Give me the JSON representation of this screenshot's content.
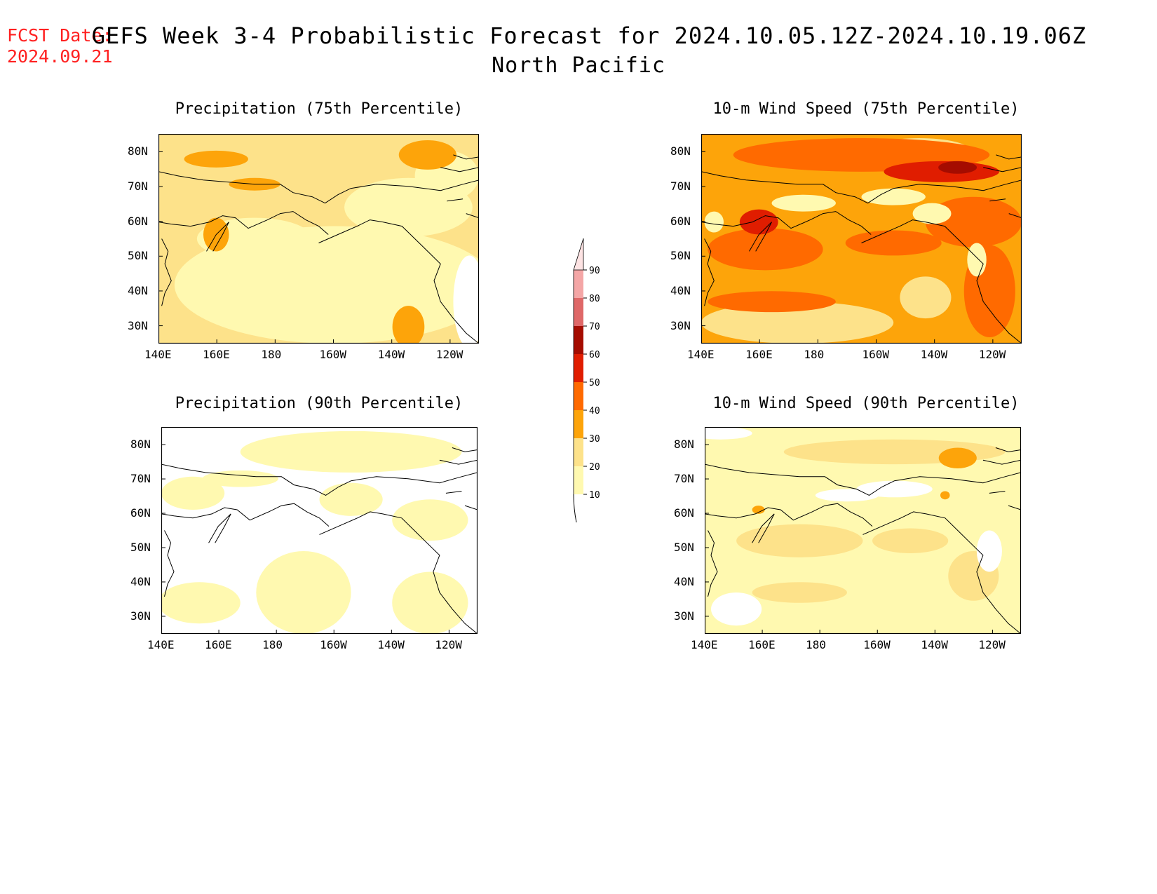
{
  "header": {
    "fcst_label": "FCST Date:",
    "fcst_date": "2024.09.21",
    "title": "GEFS Week 3-4 Probabilistic Forecast for 2024.10.05.12Z-2024.10.19.06Z",
    "subtitle": "North Pacific"
  },
  "panels": [
    {
      "title": "Precipitation (75th Percentile)",
      "style": "p75"
    },
    {
      "title": "10-m Wind Speed (75th Percentile)",
      "style": "w75"
    },
    {
      "title": "Precipitation (90th Percentile)",
      "style": "p90"
    },
    {
      "title": "10-m Wind Speed (90th Percentile)",
      "style": "w90"
    }
  ],
  "axes": {
    "lat_ticks": [
      "80N",
      "70N",
      "60N",
      "50N",
      "40N",
      "30N"
    ],
    "lon_ticks": [
      "140E",
      "160E",
      "180",
      "160W",
      "140W",
      "120W"
    ]
  },
  "colorbar": {
    "levels": [
      "90",
      "80",
      "70",
      "60",
      "50",
      "40",
      "30",
      "20",
      "10"
    ],
    "colors": {
      "10-20": "#fff9b0",
      "20-30": "#fde28a",
      "30-40": "#fda40a",
      "40-50": "#ff6a00",
      "50-60": "#e01d00",
      "60-70": "#a50c00",
      "70-80": "#df6868",
      "80-90": "#f4a6a6",
      "90+": "#fde3e3"
    }
  }
}
